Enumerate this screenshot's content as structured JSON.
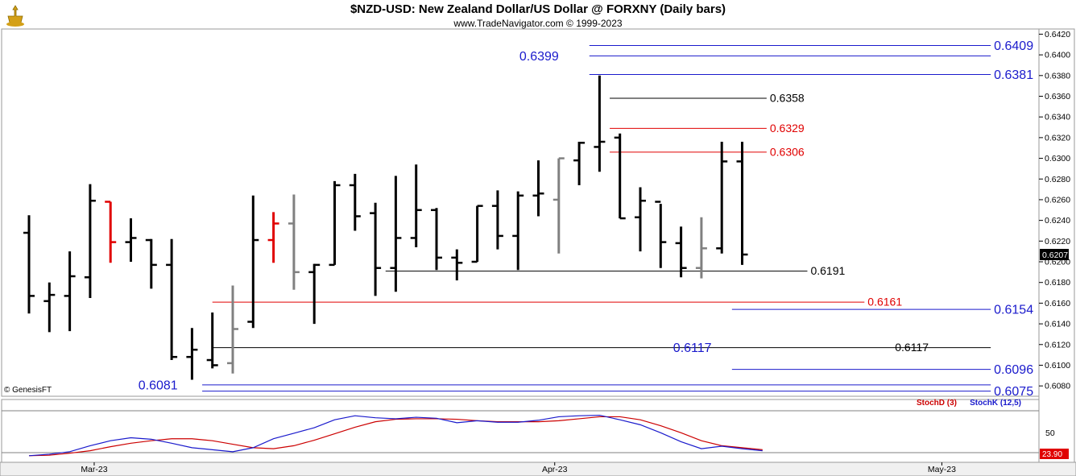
{
  "header": {
    "title": "$NZD-USD:  New Zealand Dollar/US Dollar @ FORXNY  (Daily bars)",
    "subtitle": "www.TradeNavigator.com © 1999-2023",
    "copyright": "© GenesisFT"
  },
  "colors": {
    "up_bar": "#000000",
    "down_bar": "#000000",
    "red_bar": "#e00000",
    "gray_bar": "#808080",
    "blue_level": "#1a1acc",
    "red_level": "#e00000",
    "black_level": "#000000",
    "stoch_d": "#cc0000",
    "stoch_k": "#1a1acc"
  },
  "chart_data": {
    "type": "ohlc",
    "ylim": [
      0.607,
      0.6425
    ],
    "yticks": [
      "0.6420",
      "0.6400",
      "0.6380",
      "0.6360",
      "0.6340",
      "0.6320",
      "0.6300",
      "0.6280",
      "0.6260",
      "0.6240",
      "0.6220",
      "0.6200",
      "0.6180",
      "0.6160",
      "0.6140",
      "0.6120",
      "0.6100",
      "0.6080"
    ],
    "last_price": "0.6207",
    "xlabels": [
      {
        "label": "Mar-23",
        "bar": 3.2
      },
      {
        "label": "Apr-23",
        "bar": 25.8
      },
      {
        "label": "May-23",
        "bar": 44.8
      }
    ],
    "bars": [
      {
        "o": 0.6228,
        "h": 0.6245,
        "l": 0.615,
        "c": 0.6167,
        "color": "black"
      },
      {
        "o": 0.6162,
        "h": 0.618,
        "l": 0.6132,
        "c": 0.6168,
        "color": "black"
      },
      {
        "o": 0.6167,
        "h": 0.621,
        "l": 0.6133,
        "c": 0.6186,
        "color": "black"
      },
      {
        "o": 0.6185,
        "h": 0.6275,
        "l": 0.6165,
        "c": 0.6259,
        "color": "black"
      },
      {
        "o": 0.6258,
        "h": 0.6258,
        "l": 0.6199,
        "c": 0.6219,
        "color": "red"
      },
      {
        "o": 0.6219,
        "h": 0.6242,
        "l": 0.62,
        "c": 0.6223,
        "color": "black"
      },
      {
        "o": 0.6221,
        "h": 0.6222,
        "l": 0.6174,
        "c": 0.6197,
        "color": "black"
      },
      {
        "o": 0.6197,
        "h": 0.6222,
        "l": 0.6105,
        "c": 0.6108,
        "color": "black"
      },
      {
        "o": 0.6108,
        "h": 0.6136,
        "l": 0.6086,
        "c": 0.6115,
        "color": "black"
      },
      {
        "o": 0.6105,
        "h": 0.6151,
        "l": 0.6097,
        "c": 0.61,
        "color": "black"
      },
      {
        "o": 0.6102,
        "h": 0.6177,
        "l": 0.6092,
        "c": 0.6135,
        "color": "gray"
      },
      {
        "o": 0.6142,
        "h": 0.6264,
        "l": 0.6136,
        "c": 0.6221,
        "color": "black"
      },
      {
        "o": 0.6221,
        "h": 0.6248,
        "l": 0.6199,
        "c": 0.6237,
        "color": "red"
      },
      {
        "o": 0.6237,
        "h": 0.6265,
        "l": 0.6173,
        "c": 0.619,
        "color": "gray"
      },
      {
        "o": 0.619,
        "h": 0.6198,
        "l": 0.614,
        "c": 0.6197,
        "color": "black"
      },
      {
        "o": 0.6197,
        "h": 0.6278,
        "l": 0.6197,
        "c": 0.6274,
        "color": "black"
      },
      {
        "o": 0.6274,
        "h": 0.6285,
        "l": 0.623,
        "c": 0.6244,
        "color": "black"
      },
      {
        "o": 0.6247,
        "h": 0.6257,
        "l": 0.6167,
        "c": 0.6194,
        "color": "black"
      },
      {
        "o": 0.6194,
        "h": 0.6283,
        "l": 0.6171,
        "c": 0.6223,
        "color": "black"
      },
      {
        "o": 0.6223,
        "h": 0.6294,
        "l": 0.6214,
        "c": 0.625,
        "color": "black"
      },
      {
        "o": 0.625,
        "h": 0.6252,
        "l": 0.6192,
        "c": 0.6204,
        "color": "black"
      },
      {
        "o": 0.6204,
        "h": 0.6212,
        "l": 0.6182,
        "c": 0.6199,
        "color": "black"
      },
      {
        "o": 0.62,
        "h": 0.6254,
        "l": 0.62,
        "c": 0.6254,
        "color": "black"
      },
      {
        "o": 0.6254,
        "h": 0.6269,
        "l": 0.6212,
        "c": 0.6225,
        "color": "black"
      },
      {
        "o": 0.6225,
        "h": 0.6268,
        "l": 0.6192,
        "c": 0.6264,
        "color": "black"
      },
      {
        "o": 0.6264,
        "h": 0.6298,
        "l": 0.6244,
        "c": 0.6266,
        "color": "black"
      },
      {
        "o": 0.626,
        "h": 0.63,
        "l": 0.6208,
        "c": 0.63,
        "color": "gray"
      },
      {
        "o": 0.6298,
        "h": 0.6316,
        "l": 0.6274,
        "c": 0.6315,
        "color": "black"
      },
      {
        "o": 0.6311,
        "h": 0.638,
        "l": 0.6287,
        "c": 0.6316,
        "color": "black"
      },
      {
        "o": 0.632,
        "h": 0.6324,
        "l": 0.6242,
        "c": 0.6242,
        "color": "black"
      },
      {
        "o": 0.6243,
        "h": 0.6272,
        "l": 0.621,
        "c": 0.6259,
        "color": "black"
      },
      {
        "o": 0.6258,
        "h": 0.6256,
        "l": 0.6194,
        "c": 0.6219,
        "color": "black"
      },
      {
        "o": 0.6218,
        "h": 0.6234,
        "l": 0.6185,
        "c": 0.6194,
        "color": "black"
      },
      {
        "o": 0.6194,
        "h": 0.6243,
        "l": 0.6184,
        "c": 0.6213,
        "color": "gray"
      },
      {
        "o": 0.6213,
        "h": 0.6316,
        "l": 0.6208,
        "c": 0.6297,
        "color": "black"
      },
      {
        "o": 0.6297,
        "h": 0.6316,
        "l": 0.6197,
        "c": 0.6207,
        "color": "black"
      }
    ],
    "levels": [
      {
        "value": 0.6409,
        "label": "0.6409",
        "color": "blue",
        "from_bar": 27.5,
        "to_bar": 47.2,
        "label_at": "right"
      },
      {
        "value": 0.6399,
        "label": "0.6399",
        "color": "blue",
        "from_bar": 27.5,
        "to_bar": 47.2,
        "label_at": "left",
        "label_bar": 26.0
      },
      {
        "value": 0.6381,
        "label": "0.6381",
        "color": "blue",
        "from_bar": 27.5,
        "to_bar": 47.2,
        "label_at": "right"
      },
      {
        "value": 0.6358,
        "label": "0.6358",
        "color": "black",
        "from_bar": 28.5,
        "to_bar": 36.2,
        "label_at": "right"
      },
      {
        "value": 0.6329,
        "label": "0.6329",
        "color": "red",
        "from_bar": 28.5,
        "to_bar": 36.2,
        "label_at": "right"
      },
      {
        "value": 0.6306,
        "label": "0.6306",
        "color": "red",
        "from_bar": 28.5,
        "to_bar": 36.2,
        "label_at": "right"
      },
      {
        "value": 0.6191,
        "label": "0.6191",
        "color": "black",
        "from_bar": 17.5,
        "to_bar": 38.2,
        "label_at": "right"
      },
      {
        "value": 0.6161,
        "label": "0.6161",
        "color": "red",
        "from_bar": 9.0,
        "to_bar": 41.0,
        "label_at": "right"
      },
      {
        "value": 0.6154,
        "label": "0.6154",
        "color": "blue",
        "from_bar": 34.5,
        "to_bar": 47.2,
        "label_at": "right"
      },
      {
        "value": 0.6117,
        "label": "0.6117",
        "color": "black",
        "from_bar": 9.0,
        "to_bar": 47.2,
        "label_at": "right",
        "label_bar": 42.5
      },
      {
        "value": 0.6117,
        "label": "0.6117",
        "color": "blue",
        "from_bar": 32.5,
        "to_bar": 32.6,
        "label_at": "left",
        "label_bar": 33.5
      },
      {
        "value": 0.6096,
        "label": "0.6096",
        "color": "blue",
        "from_bar": 34.5,
        "to_bar": 47.2,
        "label_at": "right"
      },
      {
        "value": 0.6081,
        "label": "0.6081",
        "color": "blue",
        "from_bar": 8.5,
        "to_bar": 47.2,
        "label_at": "left",
        "label_bar": 7.3
      },
      {
        "value": 0.6075,
        "label": "0.6075",
        "color": "blue",
        "from_bar": 8.5,
        "to_bar": 47.2,
        "label_at": "right"
      }
    ],
    "stochastic": {
      "legend_d": "StochD (3)",
      "legend_k": "StochK (12,5)",
      "tick": "50",
      "last_value": "23.90",
      "ylim": [
        0,
        100
      ],
      "d": [
        10,
        11,
        15,
        20,
        28,
        35,
        40,
        44,
        44,
        40,
        33,
        26,
        24,
        30,
        41,
        54,
        67,
        78,
        83,
        84,
        84,
        83,
        80,
        78,
        78,
        78,
        80,
        84,
        88,
        88,
        82,
        70,
        56,
        40,
        30,
        26,
        22
      ],
      "k": [
        10,
        13,
        18,
        30,
        40,
        46,
        43,
        35,
        26,
        22,
        18,
        26,
        44,
        55,
        66,
        82,
        90,
        86,
        84,
        87,
        85,
        76,
        80,
        77,
        77,
        81,
        88,
        90,
        91,
        82,
        72,
        56,
        38,
        24,
        29,
        24,
        20
      ]
    }
  }
}
